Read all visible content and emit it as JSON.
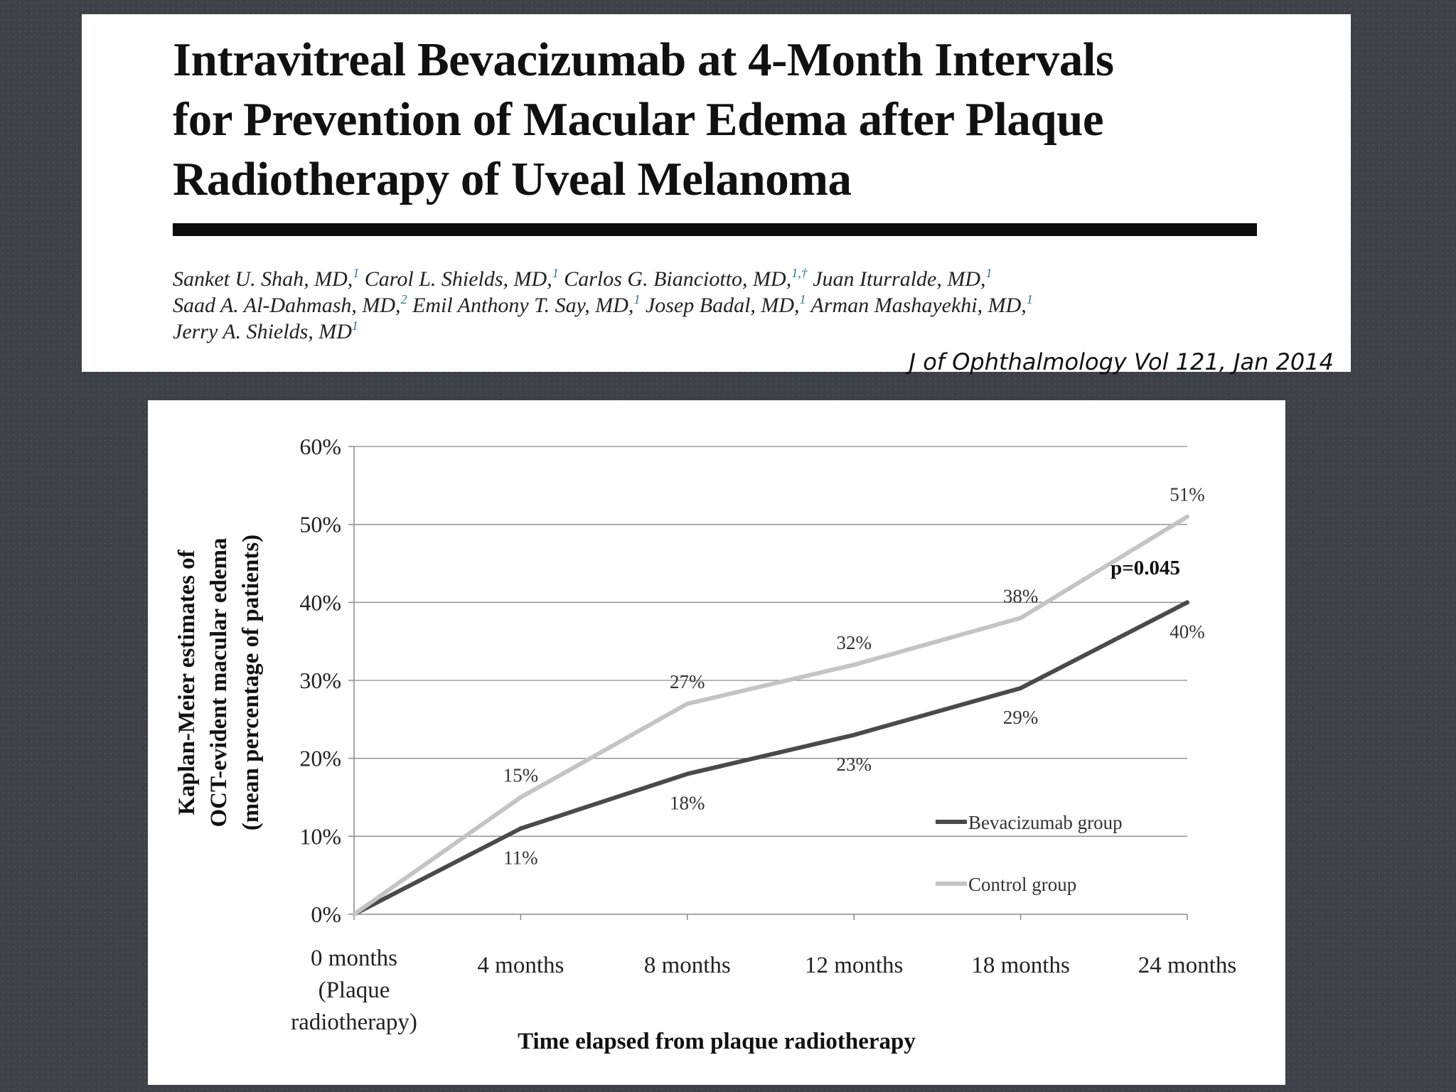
{
  "paper": {
    "title_lines": [
      "Intravitreal Bevacizumab at 4-Month Intervals",
      "for Prevention of Macular Edema after Plaque",
      "Radiotherapy of Uveal Melanoma"
    ],
    "authors": [
      {
        "name": "Sanket U. Shah, MD,",
        "aff": "1"
      },
      {
        "name": "Carol L. Shields, MD,",
        "aff": "1"
      },
      {
        "name": "Carlos G. Bianciotto, MD,",
        "aff": "1,†"
      },
      {
        "name": "Juan Iturralde, MD,",
        "aff": "1"
      },
      {
        "name": "Saad A. Al-Dahmash, MD,",
        "aff": "2"
      },
      {
        "name": "Emil Anthony T. Say, MD,",
        "aff": "1"
      },
      {
        "name": "Josep Badal, MD,",
        "aff": "1"
      },
      {
        "name": "Arman Mashayekhi, MD,",
        "aff": "1"
      },
      {
        "name": "Jerry A. Shields, MD",
        "aff": "1"
      }
    ],
    "citation": "J of Ophthalmology Vol 121,  Jan 2014"
  },
  "chart_data": {
    "type": "line",
    "title": "",
    "xlabel": "Time elapsed from plaque radiotherapy",
    "ylabel_lines": [
      "Kaplan-Meier estimates of",
      "OCT-evident macular edema",
      "(mean percentage of patients)"
    ],
    "categories": [
      [
        "0 months",
        "(Plaque",
        "radiotherapy)"
      ],
      [
        "4 months"
      ],
      [
        "8 months"
      ],
      [
        "12 months"
      ],
      [
        "18 months"
      ],
      [
        "24 months"
      ]
    ],
    "y_ticks": [
      0,
      10,
      20,
      30,
      40,
      50,
      60
    ],
    "y_tick_labels": [
      "0%",
      "10%",
      "20%",
      "30%",
      "40%",
      "50%",
      "60%"
    ],
    "ylim": [
      0,
      60
    ],
    "grid": true,
    "legend_position": "bottom-right",
    "series": [
      {
        "name": "Bevacizumab group",
        "color": "#4a4a4a",
        "values": [
          0,
          11,
          18,
          23,
          29,
          40
        ],
        "labels": [
          "",
          "11%",
          "18%",
          "23%",
          "29%",
          "40%"
        ]
      },
      {
        "name": "Control group",
        "color": "#c4c4c4",
        "values": [
          0,
          15,
          27,
          32,
          38,
          51
        ],
        "labels": [
          "",
          "15%",
          "27%",
          "32%",
          "38%",
          "51%"
        ]
      }
    ],
    "annotation": "p=0.045"
  }
}
